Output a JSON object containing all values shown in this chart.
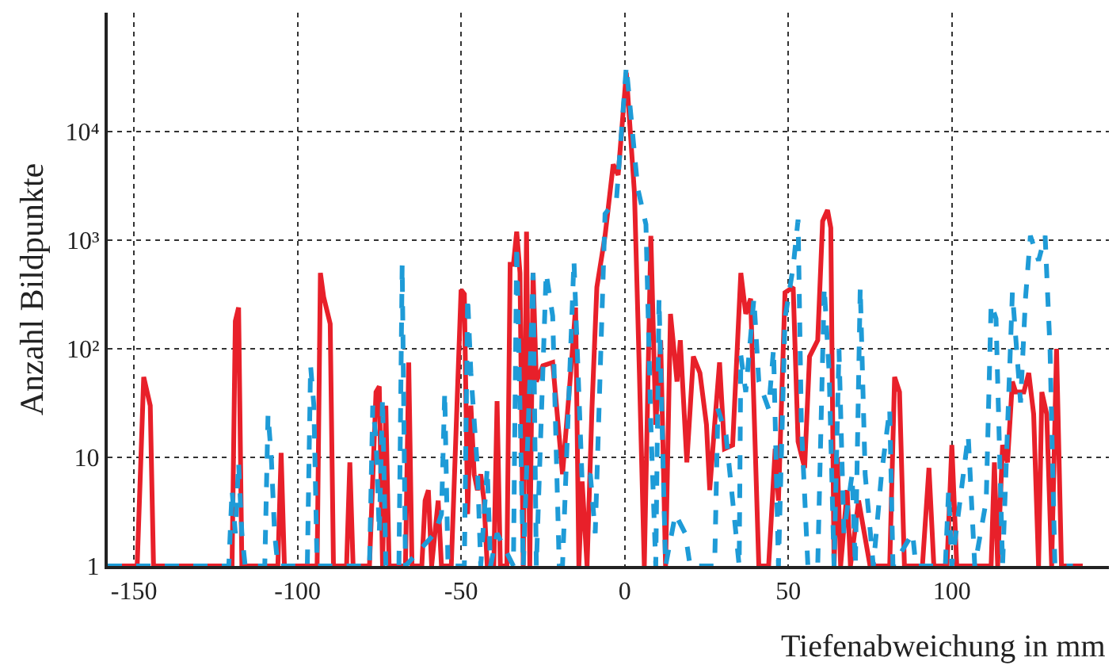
{
  "chart_data": {
    "type": "line",
    "xlabel": "Tiefenabweichung in mm",
    "ylabel": "Anzahl Bildpunkte",
    "xlim": [
      -158,
      148
    ],
    "xticks": [
      -150,
      -100,
      -50,
      0,
      50,
      100
    ],
    "ylim": [
      1,
      125000
    ],
    "log": "y",
    "yticks": [
      1,
      10,
      {
        "value": 100,
        "label": "10²"
      },
      {
        "value": 1000,
        "label": "10³"
      },
      {
        "value": 10000,
        "label": "10⁴"
      }
    ],
    "grid": true,
    "marker": "none",
    "series": [
      {
        "color": "#e8202a",
        "line_style": "solid",
        "x": [
          -158,
          -149,
          -147,
          -145,
          -144,
          -120,
          -119,
          -118,
          -117,
          -106,
          -105,
          -104,
          -94,
          -93,
          -92,
          -90,
          -89,
          -85,
          -84,
          -83,
          -78,
          -76,
          -75,
          -74,
          -73,
          -72,
          -67,
          -66,
          -65,
          -62,
          -61,
          -60,
          -59,
          -57,
          -56,
          -53,
          -50,
          -49,
          -48,
          -47,
          -46,
          -45,
          -44,
          -43,
          -42,
          -40,
          -39,
          -38,
          -36,
          -35,
          -34,
          -33,
          -32,
          -31,
          -30,
          -29,
          -28,
          -27,
          -25,
          -22,
          -19,
          -16.5,
          -15,
          -14,
          -13,
          -11.5,
          -10,
          -8.5,
          -6,
          -3.5,
          -2,
          0.5,
          3,
          4.5,
          6,
          8,
          9.5,
          11,
          12.5,
          14,
          16,
          17,
          19,
          21,
          23,
          25,
          26,
          27.5,
          29,
          30.5,
          33,
          35.5,
          37,
          38.5,
          41,
          44,
          46,
          47,
          49,
          51.5,
          53,
          55,
          56.5,
          59,
          60.5,
          62,
          63,
          64,
          65,
          66,
          68,
          69,
          71.5,
          75,
          81,
          82.5,
          84,
          85.5,
          91,
          93,
          94.5,
          98.5,
          100,
          101.5,
          112,
          113,
          114,
          115.5,
          117,
          118.5,
          119.5,
          122,
          123.5,
          125,
          126.5,
          127.5,
          129,
          130.5,
          132,
          133.5,
          140
        ],
        "values": [
          1,
          1,
          55,
          30,
          1,
          1,
          180,
          240,
          1,
          1,
          11,
          1,
          1,
          500,
          300,
          170,
          1,
          1,
          9,
          1,
          1,
          40,
          45,
          1,
          30,
          1,
          1,
          75,
          1,
          1,
          4,
          5,
          1,
          4,
          1,
          1,
          350,
          320,
          3,
          30,
          7,
          5,
          7,
          4,
          1,
          1,
          33,
          1,
          1,
          600,
          600,
          1200,
          500,
          1,
          1200,
          1,
          500,
          50,
          70,
          75,
          7,
          60,
          240,
          1,
          6,
          1,
          28,
          370,
          1100,
          5000,
          4000,
          35000,
          2700,
          60,
          1,
          1100,
          20,
          120,
          1,
          210,
          50,
          120,
          9,
          85,
          60,
          20,
          5,
          20,
          75,
          12,
          13,
          500,
          210,
          290,
          1,
          1,
          12,
          4,
          330,
          370,
          14,
          8,
          85,
          120,
          1500,
          1900,
          1300,
          1,
          10,
          1,
          5,
          1,
          4,
          1,
          1,
          55,
          40,
          1,
          1,
          8,
          1,
          1,
          13,
          1,
          1,
          9,
          1,
          13,
          9,
          50,
          40,
          40,
          60,
          25,
          1,
          40,
          25,
          1,
          100,
          1,
          1
        ]
      },
      {
        "color": "#1e9bd7",
        "line_style": "dashed",
        "x": [
          -158,
          -121,
          -120,
          -119,
          -118,
          -117,
          -116,
          -110,
          -109,
          -108,
          -107,
          -106,
          -97,
          -96,
          -95,
          -94,
          -78,
          -77,
          -76,
          -75,
          -74,
          -73,
          -69,
          -68,
          -67,
          -58,
          -56,
          -55,
          -54,
          -49,
          -48,
          -47,
          -45,
          -44,
          -42,
          -41,
          -39,
          -34,
          -33,
          -31,
          -29,
          -28,
          -27,
          -24,
          -22,
          -20,
          -19,
          -15.5,
          -13,
          -10.5,
          -9,
          -6,
          -2.5,
          0.5,
          4,
          6.5,
          8,
          9.5,
          10.5,
          12.5,
          15.5,
          18.5,
          20,
          27.5,
          28.5,
          31,
          33,
          35,
          35.5,
          37,
          39.5,
          41,
          44,
          45.5,
          47,
          49,
          51.5,
          53,
          54,
          56,
          59,
          61,
          62.5,
          64,
          65.5,
          67,
          69.5,
          70.5,
          72,
          73.5,
          76,
          78.5,
          81,
          82,
          88,
          89,
          98,
          99,
          100,
          105,
          107,
          110.5,
          112,
          113.5,
          115.5,
          118.5,
          121,
          122.5,
          124,
          126.5,
          128.5,
          130,
          131.5,
          137
        ],
        "values": [
          1,
          1,
          5,
          2,
          9,
          2,
          1,
          1,
          25,
          10,
          2,
          1,
          1,
          70,
          30,
          1,
          1,
          30,
          15,
          2,
          35,
          1,
          1,
          600,
          1,
          2,
          3,
          40,
          1,
          1,
          300,
          60,
          8,
          1,
          8,
          1,
          2,
          1,
          900,
          1,
          50,
          500,
          1,
          500,
          200,
          1,
          1,
          650,
          6,
          7,
          2,
          1750,
          2400,
          40000,
          3000,
          1400,
          20,
          1,
          290,
          1,
          3,
          2,
          1,
          1,
          28,
          16,
          4,
          1,
          87,
          40,
          290,
          50,
          28,
          100,
          1,
          190,
          570,
          1550,
          20,
          1,
          1,
          370,
          60,
          1,
          100,
          2,
          7,
          1,
          370,
          7,
          1,
          7,
          28,
          1,
          2,
          1,
          1,
          5,
          1,
          16,
          1,
          4,
          260,
          190,
          1,
          330,
          32,
          290,
          1100,
          650,
          1100,
          100,
          1,
          1
        ]
      }
    ]
  }
}
